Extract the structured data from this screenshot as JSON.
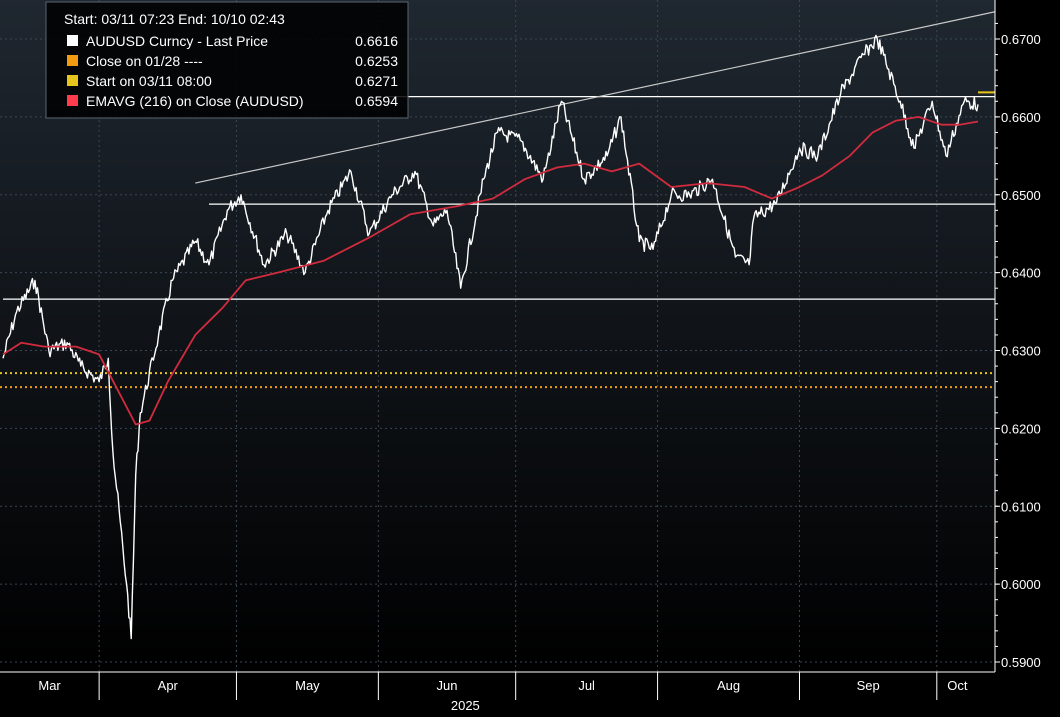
{
  "chart_data": {
    "type": "line",
    "header": "Start: 03/11 07:23 End: 10/10 02:43",
    "x_range": [
      "2025-03-11",
      "2025-10-10"
    ],
    "y_range": [
      0.59,
      0.675
    ],
    "y_ticks": [
      "0.6700",
      "0.6600",
      "0.6500",
      "0.6400",
      "0.6300",
      "0.6200",
      "0.6100",
      "0.6000",
      "0.5900"
    ],
    "y_tick_values": [
      0.67,
      0.66,
      0.65,
      0.64,
      0.63,
      0.62,
      0.61,
      0.6,
      0.59
    ],
    "x_ticks": [
      "Mar",
      "Apr",
      "May",
      "Jun",
      "Jul",
      "Aug",
      "Sep",
      "Oct"
    ],
    "year_label": "2025",
    "grid": true,
    "legend_position": "top-left",
    "colors": {
      "background": "#000000",
      "plot_top": "#1f2730",
      "price": "#ffffff",
      "ema": "#d12b3e",
      "close_0128": "#f39c12",
      "start_0311": "#e8c51d",
      "grid": "#3a4654"
    },
    "legend": [
      {
        "label": "AUDUSD Curncy - Last Price",
        "value": "0.6616",
        "color": "#ffffff"
      },
      {
        "label": "Close on 01/28 ----",
        "value": "0.6253",
        "color": "#f39c12"
      },
      {
        "label": "Start on 03/11 08:00",
        "value": "0.6271",
        "color": "#e8c51d"
      },
      {
        "label": "EMAVG (216)  on Close (AUDUSD)",
        "value": "0.6594",
        "color": "#ff3b4e"
      }
    ],
    "series": [
      {
        "name": "AUDUSD Curncy - Last Price",
        "dates": [
          "2025-03-11",
          "2025-03-14",
          "2025-03-18",
          "2025-03-21",
          "2025-03-25",
          "2025-03-28",
          "2025-04-01",
          "2025-04-03",
          "2025-04-04",
          "2025-04-07",
          "2025-04-08",
          "2025-04-09",
          "2025-04-10",
          "2025-04-14",
          "2025-04-17",
          "2025-04-22",
          "2025-04-25",
          "2025-04-29",
          "2025-05-02",
          "2025-05-07",
          "2025-05-12",
          "2025-05-16",
          "2025-05-21",
          "2025-05-26",
          "2025-05-30",
          "2025-06-04",
          "2025-06-09",
          "2025-06-13",
          "2025-06-16",
          "2025-06-19",
          "2025-06-24",
          "2025-06-27",
          "2025-07-02",
          "2025-07-07",
          "2025-07-11",
          "2025-07-16",
          "2025-07-21",
          "2025-07-24",
          "2025-07-28",
          "2025-07-31",
          "2025-08-04",
          "2025-08-08",
          "2025-08-13",
          "2025-08-18",
          "2025-08-21",
          "2025-08-22",
          "2025-08-27",
          "2025-09-01",
          "2025-09-05",
          "2025-09-10",
          "2025-09-15",
          "2025-09-18",
          "2025-09-23",
          "2025-09-26",
          "2025-09-30",
          "2025-10-03",
          "2025-10-07",
          "2025-10-10"
        ],
        "values": [
          0.629,
          0.635,
          0.639,
          0.63,
          0.631,
          0.628,
          0.626,
          0.629,
          0.617,
          0.6,
          0.593,
          0.614,
          0.622,
          0.632,
          0.639,
          0.644,
          0.641,
          0.648,
          0.65,
          0.641,
          0.645,
          0.64,
          0.648,
          0.653,
          0.645,
          0.65,
          0.653,
          0.646,
          0.648,
          0.638,
          0.652,
          0.658,
          0.657,
          0.652,
          0.662,
          0.652,
          0.655,
          0.66,
          0.644,
          0.643,
          0.65,
          0.65,
          0.652,
          0.642,
          0.641,
          0.647,
          0.649,
          0.656,
          0.655,
          0.663,
          0.668,
          0.67,
          0.662,
          0.656,
          0.662,
          0.655,
          0.662,
          0.6616
        ]
      },
      {
        "name": "EMAVG (216)  on Close (AUDUSD)",
        "dates": [
          "2025-03-11",
          "2025-03-15",
          "2025-03-20",
          "2025-03-27",
          "2025-04-01",
          "2025-04-05",
          "2025-04-09",
          "2025-04-12",
          "2025-04-16",
          "2025-04-22",
          "2025-04-28",
          "2025-05-03",
          "2025-05-10",
          "2025-05-20",
          "2025-05-30",
          "2025-06-08",
          "2025-06-18",
          "2025-06-26",
          "2025-07-03",
          "2025-07-10",
          "2025-07-16",
          "2025-07-22",
          "2025-07-28",
          "2025-08-04",
          "2025-08-12",
          "2025-08-20",
          "2025-08-26",
          "2025-09-01",
          "2025-09-06",
          "2025-09-12",
          "2025-09-17",
          "2025-09-22",
          "2025-09-27",
          "2025-10-02",
          "2025-10-06",
          "2025-10-10"
        ],
        "values": [
          0.6295,
          0.631,
          0.6305,
          0.6305,
          0.6295,
          0.625,
          0.6205,
          0.621,
          0.626,
          0.632,
          0.6355,
          0.639,
          0.64,
          0.6415,
          0.6445,
          0.6475,
          0.6485,
          0.6495,
          0.652,
          0.6535,
          0.654,
          0.653,
          0.654,
          0.651,
          0.6515,
          0.651,
          0.6495,
          0.651,
          0.6525,
          0.655,
          0.658,
          0.6595,
          0.66,
          0.659,
          0.659,
          0.6594
        ]
      }
    ],
    "reference_lines": [
      {
        "label": "Close on 01/28",
        "value": 0.6253,
        "style": "dotted"
      },
      {
        "label": "Start on 03/11 08:00",
        "value": 0.6271,
        "style": "dotted"
      },
      {
        "value": 0.6366,
        "start": "2025-03-11",
        "end": "2025-10-10"
      },
      {
        "value": 0.6488,
        "start": "2025-04-25",
        "end": "2025-10-10"
      },
      {
        "value": 0.6626,
        "start": "2025-06-03",
        "end": "2025-10-10"
      },
      {
        "start": "2025-04-22",
        "value": 0.6515,
        "end": "2025-10-10",
        "end_value": 0.6735
      }
    ]
  }
}
